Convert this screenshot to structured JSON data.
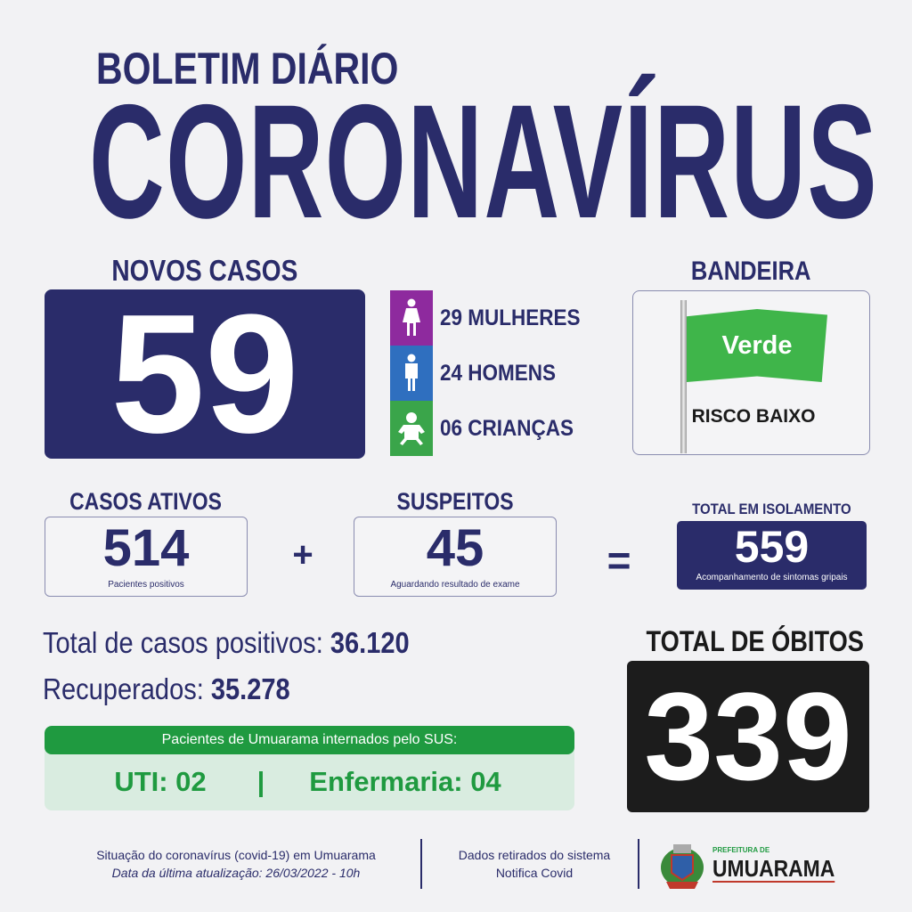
{
  "header": {
    "subtitle": "BOLETIM DIÁRIO",
    "title": "CORONAVÍRUS"
  },
  "novos_casos": {
    "label": "NOVOS CASOS",
    "value": "59",
    "breakdown": [
      {
        "text": "29 MULHERES",
        "icon": "woman-icon",
        "color": "#8e2a9e"
      },
      {
        "text": "24 HOMENS",
        "icon": "man-icon",
        "color": "#2f6fbf"
      },
      {
        "text": "06 CRIANÇAS",
        "icon": "baby-icon",
        "color": "#3aa54a"
      }
    ]
  },
  "bandeira": {
    "label": "BANDEIRA",
    "flag": "Verde",
    "risk": "RISCO BAIXO",
    "flag_color": "#3fb54a"
  },
  "ativos": {
    "label": "CASOS ATIVOS",
    "value": "514",
    "caption": "Pacientes positivos"
  },
  "plus": "+",
  "suspeitos": {
    "label": "SUSPEITOS",
    "value": "45",
    "caption": "Aguardando resultado de exame"
  },
  "equals": "=",
  "isolamento": {
    "label": "TOTAL EM ISOLAMENTO",
    "value": "559",
    "caption": "Acompanhamento de sintomas gripais"
  },
  "totais": {
    "positivos_label": "Total de casos positivos:",
    "positivos": "36.120",
    "recuperados_label": "Recuperados:",
    "recuperados": "35.278"
  },
  "sus": {
    "header": "Pacientes de Umuarama internados pelo SUS:",
    "uti": "UTI: 02",
    "sep": "|",
    "enfermaria": "Enfermaria: 04"
  },
  "obitos": {
    "label": "TOTAL DE ÓBITOS",
    "value": "339"
  },
  "footer": {
    "line1": "Situação do coronavírus (covid-19) em Umuarama",
    "line2": "Data da última atualização: 26/03/2022 - 10h",
    "source1": "Dados retirados do sistema",
    "source2": "Notifica Covid",
    "logo_small": "PREFEITURA DE",
    "logo_big": "UMUARAMA"
  },
  "colors": {
    "navy": "#2a2c6a",
    "green": "#1f9a40",
    "background": "#f2f2f4"
  }
}
